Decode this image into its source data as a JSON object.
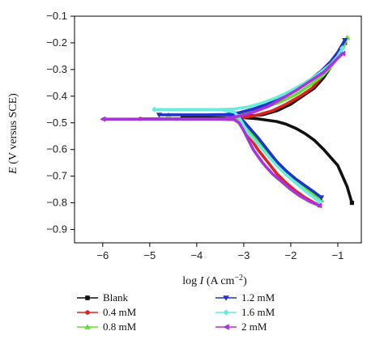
{
  "chart_data": {
    "type": "line",
    "xlabel_prefix": "log ",
    "xlabel_var": "I",
    "xlabel_unit_base": " (A cm",
    "xlabel_unit_sup": "−2",
    "xlabel_unit_close": ")",
    "ylabel_var": "E",
    "ylabel_unit": " (V versus SCE)",
    "xlim": [
      -6.6,
      -0.5
    ],
    "ylim": [
      -0.95,
      -0.1
    ],
    "xticks": [
      -6,
      -5,
      -4,
      -3,
      -2,
      -1
    ],
    "xtick_labels": [
      "−6",
      "−5",
      "−4",
      "−3",
      "−2",
      "−1"
    ],
    "yticks": [
      -0.1,
      -0.2,
      -0.3,
      -0.4,
      -0.5,
      -0.6,
      -0.7,
      -0.8,
      -0.9
    ],
    "ytick_labels": [
      "−0.1",
      "−0.2",
      "−0.3",
      "−0.4",
      "−0.5",
      "−0.6",
      "−0.7",
      "−0.8",
      "−0.9"
    ],
    "grid": false,
    "legend_position": "bottom",
    "series": [
      {
        "name": "Blank",
        "color": "#111111",
        "marker": "square",
        "x": [
          -0.7,
          -0.75,
          -0.8,
          -0.9,
          -1.0,
          -1.15,
          -1.3,
          -1.5,
          -1.7,
          -1.9,
          -2.1,
          -2.3,
          -2.5,
          -2.7,
          -2.9,
          -3.05,
          -3.15,
          -3.2,
          -3.3,
          -3.45,
          -3.6,
          -3.8,
          -4.0,
          -4.2,
          -4.3,
          -3.8,
          -3.2,
          -2.9,
          -2.6,
          -2.3,
          -2.0,
          -1.75,
          -1.5,
          -1.3,
          -1.15,
          -1.0,
          -0.9,
          -0.85
        ],
        "y": [
          -0.8,
          -0.77,
          -0.74,
          -0.7,
          -0.66,
          -0.63,
          -0.6,
          -0.565,
          -0.54,
          -0.52,
          -0.505,
          -0.495,
          -0.49,
          -0.485,
          -0.482,
          -0.48,
          -0.48,
          -0.478,
          -0.477,
          -0.476,
          -0.475,
          -0.475,
          -0.475,
          -0.475,
          -0.475,
          -0.475,
          -0.475,
          -0.474,
          -0.47,
          -0.455,
          -0.43,
          -0.4,
          -0.37,
          -0.33,
          -0.29,
          -0.25,
          -0.22,
          -0.2
        ]
      },
      {
        "name": "0.4 mM",
        "color": "#dd2222",
        "marker": "circle",
        "x": [
          -1.4,
          -1.5,
          -1.7,
          -1.9,
          -2.1,
          -2.3,
          -2.5,
          -2.7,
          -2.85,
          -3.0,
          -3.1,
          -3.2,
          -3.5,
          -4.0,
          -4.5,
          -5.0,
          -5.2,
          -4.0,
          -3.2,
          -3.0,
          -2.7,
          -2.4,
          -2.1,
          -1.8,
          -1.55,
          -1.35,
          -1.15,
          -1.0,
          -0.9,
          -0.85
        ],
        "y": [
          -0.81,
          -0.8,
          -0.78,
          -0.755,
          -0.725,
          -0.69,
          -0.645,
          -0.6,
          -0.56,
          -0.52,
          -0.5,
          -0.488,
          -0.486,
          -0.485,
          -0.485,
          -0.485,
          -0.485,
          -0.485,
          -0.484,
          -0.48,
          -0.47,
          -0.455,
          -0.43,
          -0.4,
          -0.37,
          -0.33,
          -0.29,
          -0.25,
          -0.22,
          -0.2
        ]
      },
      {
        "name": "0.8 mM",
        "color": "#66dd33",
        "marker": "triangle-up",
        "x": [
          -1.35,
          -1.5,
          -1.7,
          -1.9,
          -2.1,
          -2.3,
          -2.5,
          -2.7,
          -2.85,
          -3.0,
          -3.1,
          -3.3,
          -3.7,
          -4.2,
          -4.6,
          -4.2,
          -3.8,
          -3.4,
          -3.1,
          -2.8,
          -2.5,
          -2.2,
          -1.9,
          -1.6,
          -1.3,
          -1.1,
          -0.95,
          -0.85,
          -0.8
        ],
        "y": [
          -0.79,
          -0.77,
          -0.74,
          -0.71,
          -0.68,
          -0.65,
          -0.61,
          -0.57,
          -0.535,
          -0.505,
          -0.485,
          -0.472,
          -0.47,
          -0.47,
          -0.47,
          -0.47,
          -0.47,
          -0.469,
          -0.465,
          -0.455,
          -0.44,
          -0.42,
          -0.395,
          -0.36,
          -0.32,
          -0.28,
          -0.24,
          -0.2,
          -0.18
        ]
      },
      {
        "name": "1.2 mM",
        "color": "#2233cc",
        "marker": "triangle-down",
        "x": [
          -1.35,
          -1.5,
          -1.7,
          -1.9,
          -2.1,
          -2.3,
          -2.5,
          -2.7,
          -2.9,
          -3.0,
          -3.1,
          -3.3,
          -3.7,
          -4.2,
          -4.8,
          -4.2,
          -3.8,
          -3.4,
          -3.1,
          -2.8,
          -2.5,
          -2.2,
          -1.9,
          -1.6,
          -1.35,
          -1.15,
          -1.0,
          -0.9,
          -0.85
        ],
        "y": [
          -0.78,
          -0.76,
          -0.735,
          -0.71,
          -0.68,
          -0.645,
          -0.6,
          -0.555,
          -0.515,
          -0.495,
          -0.478,
          -0.47,
          -0.47,
          -0.47,
          -0.47,
          -0.47,
          -0.47,
          -0.469,
          -0.462,
          -0.448,
          -0.43,
          -0.405,
          -0.375,
          -0.34,
          -0.305,
          -0.27,
          -0.235,
          -0.205,
          -0.19
        ]
      },
      {
        "name": "1.6 mM",
        "color": "#66eedd",
        "marker": "diamond",
        "x": [
          -1.4,
          -1.55,
          -1.7,
          -1.9,
          -2.1,
          -2.3,
          -2.5,
          -2.7,
          -2.9,
          -3.0,
          -3.1,
          -3.2,
          -3.5,
          -4.0,
          -4.5,
          -4.9,
          -4.5,
          -4.0,
          -3.5,
          -3.2,
          -2.9,
          -2.6,
          -2.3,
          -2.0,
          -1.7,
          -1.4,
          -1.15,
          -1.0,
          -0.9
        ],
        "y": [
          -0.795,
          -0.775,
          -0.755,
          -0.725,
          -0.695,
          -0.66,
          -0.62,
          -0.58,
          -0.54,
          -0.51,
          -0.48,
          -0.46,
          -0.45,
          -0.45,
          -0.45,
          -0.45,
          -0.45,
          -0.45,
          -0.45,
          -0.448,
          -0.44,
          -0.425,
          -0.405,
          -0.38,
          -0.35,
          -0.315,
          -0.28,
          -0.25,
          -0.22
        ]
      },
      {
        "name": "2 mM",
        "color": "#aa33dd",
        "marker": "triangle-left",
        "x": [
          -1.4,
          -1.6,
          -1.8,
          -2.0,
          -2.2,
          -2.4,
          -2.6,
          -2.8,
          -3.0,
          -3.1,
          -3.2,
          -3.4,
          -4.0,
          -4.8,
          -5.5,
          -6.0,
          -5.5,
          -4.8,
          -4.0,
          -3.4,
          -3.1,
          -2.8,
          -2.5,
          -2.2,
          -1.9,
          -1.6,
          -1.3,
          -1.1,
          -0.9
        ],
        "y": [
          -0.81,
          -0.795,
          -0.775,
          -0.75,
          -0.72,
          -0.69,
          -0.65,
          -0.6,
          -0.53,
          -0.5,
          -0.488,
          -0.486,
          -0.486,
          -0.486,
          -0.486,
          -0.486,
          -0.486,
          -0.486,
          -0.486,
          -0.484,
          -0.475,
          -0.46,
          -0.44,
          -0.41,
          -0.38,
          -0.345,
          -0.31,
          -0.275,
          -0.24
        ]
      }
    ]
  }
}
